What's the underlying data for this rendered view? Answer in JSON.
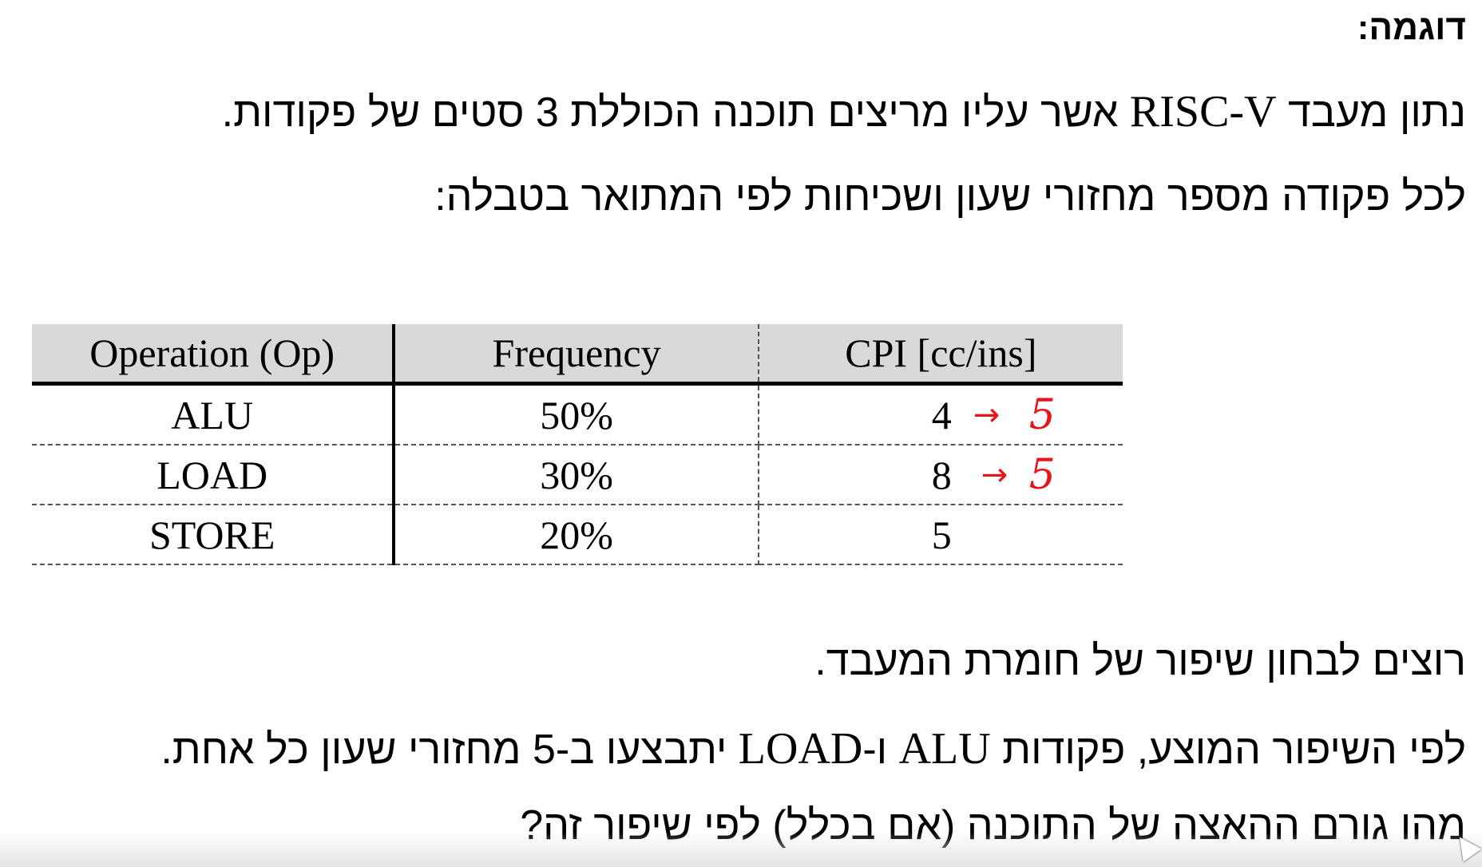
{
  "heading": "דוגמה:",
  "line1": {
    "before": "נתון מעבד ",
    "latin": "RISC-V",
    "after": " אשר עליו מריצים תוכנה הכוללת 3 סטים של פקודות."
  },
  "line2": "לכל פקודה מספר מחזורי שעון ושכיחות לפי המתואר בטבלה:",
  "table": {
    "headers": [
      "Operation (Op)",
      "Frequency",
      "CPI [cc/ins]"
    ],
    "rows": [
      {
        "op": "ALU",
        "freq": "50%",
        "cpi": "4",
        "annotation": "5"
      },
      {
        "op": "LOAD",
        "freq": "30%",
        "cpi": "8",
        "annotation": "5"
      },
      {
        "op": "STORE",
        "freq": "20%",
        "cpi": "5",
        "annotation": ""
      }
    ]
  },
  "annotation_color": "#e8141c",
  "line3": "רוצים לבחון שיפור של חומרת המעבד.",
  "line4": {
    "before": "לפי השיפור המוצע, פקודות ",
    "latin": "ALU",
    "mid": " ו-",
    "latin2": "LOAD",
    "after": " יתבצעו ב-5 מחזורי שעון כל אחת."
  },
  "line5": "מהו גורם ההאצה של התוכנה (אם בכלל) לפי שיפור זה?"
}
